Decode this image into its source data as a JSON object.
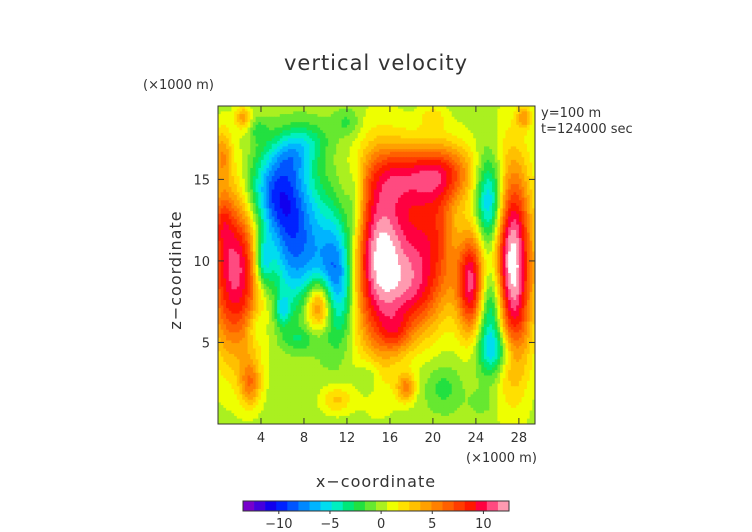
{
  "chart_data": {
    "type": "heatmap",
    "title": "vertical velocity",
    "xlabel": "x−coordinate",
    "ylabel": "z−coordinate",
    "x_unit": "(×1000 m)",
    "y_unit": "(×1000 m)",
    "xlim": [
      0,
      29.5
    ],
    "ylim": [
      0,
      19.5
    ],
    "x_ticks": [
      4,
      8,
      12,
      16,
      20,
      24,
      28
    ],
    "y_ticks": [
      5,
      10,
      15
    ],
    "annotations": [
      "y=100 m",
      "t=124000 sec"
    ],
    "grid": false,
    "colorbar": {
      "min": -13.5,
      "max": 12.5,
      "ticks": [
        -10,
        -5,
        0,
        5,
        10
      ],
      "tick_labels": [
        "−10",
        "−5",
        "0",
        "5",
        "10"
      ],
      "colors": [
        "#7700cc",
        "#4400dd",
        "#1100ee",
        "#0022ff",
        "#0055ff",
        "#0088ff",
        "#00b4ff",
        "#00dcf0",
        "#00f0c0",
        "#00e878",
        "#22e040",
        "#66e830",
        "#aaf020",
        "#eeff00",
        "#ffe000",
        "#ffc000",
        "#ffa000",
        "#ff8000",
        "#ff6000",
        "#ff3c00",
        "#ff1800",
        "#ff0040",
        "#ff4a80",
        "#ff9ab0"
      ]
    },
    "features": [
      {
        "x": 1.5,
        "z": 9.5,
        "value": 10
      },
      {
        "x": 5.5,
        "z": 13.5,
        "value": -9
      },
      {
        "x": 8.5,
        "z": 10.5,
        "value": -5
      },
      {
        "x": 11.5,
        "z": 9.0,
        "value": -7
      },
      {
        "x": 9.5,
        "z": 7.0,
        "value": 7
      },
      {
        "x": 15.0,
        "z": 10.0,
        "value": 11
      },
      {
        "x": 20.0,
        "z": 12.0,
        "value": 7
      },
      {
        "x": 18.5,
        "z": 8.0,
        "value": 6
      },
      {
        "x": 23.5,
        "z": 8.5,
        "value": 9
      },
      {
        "x": 27.5,
        "z": 9.5,
        "value": 13
      }
    ]
  }
}
